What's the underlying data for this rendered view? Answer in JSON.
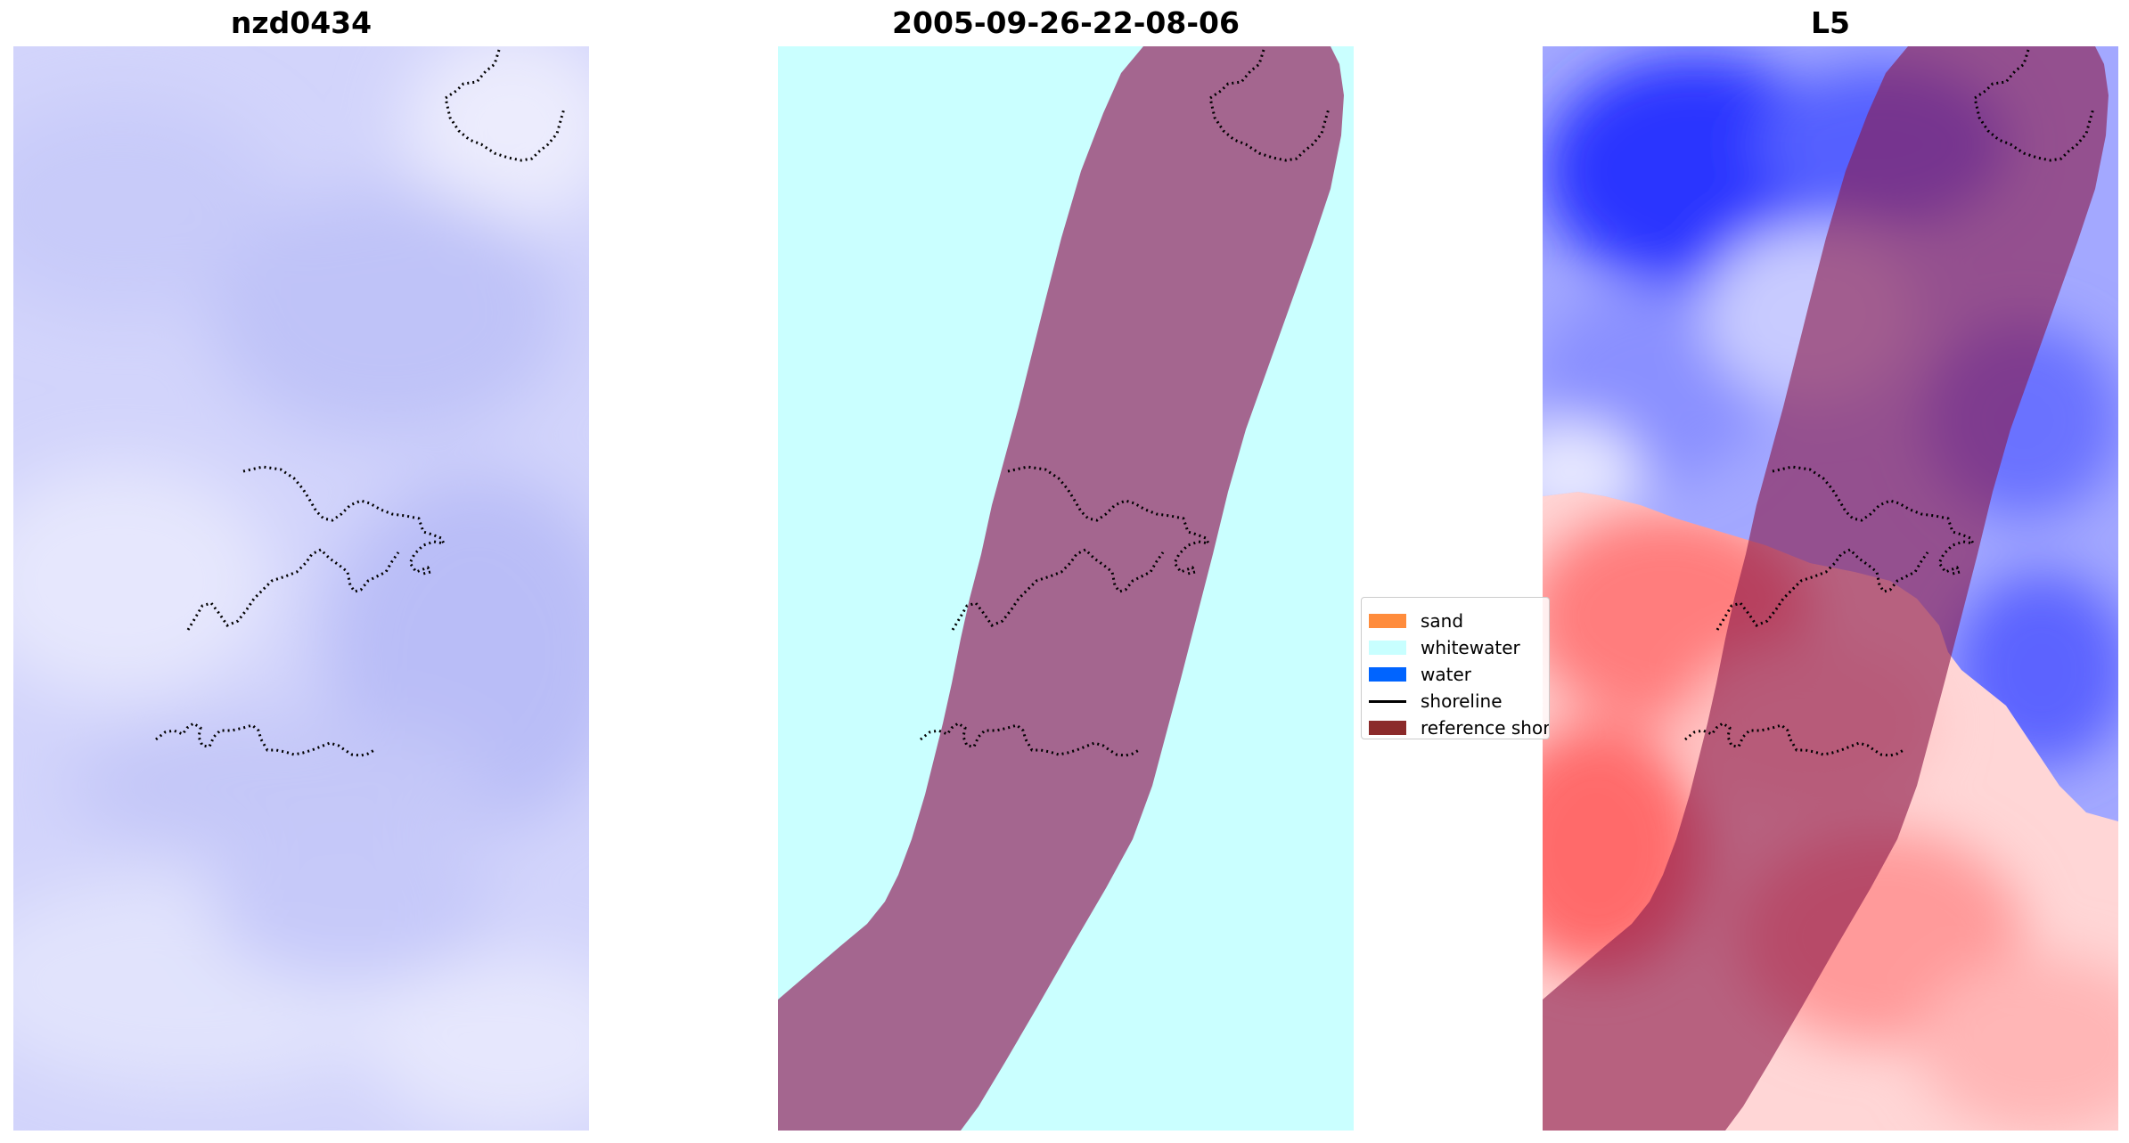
{
  "panels": [
    {
      "title": "nzd0434"
    },
    {
      "title": "2005-09-26-22-08-06"
    },
    {
      "title": "L5"
    }
  ],
  "legend": {
    "items": [
      {
        "label": "sand",
        "color": "#ff8c3c",
        "kind": "patch"
      },
      {
        "label": "whitewater",
        "color": "#c8ffff",
        "kind": "patch"
      },
      {
        "label": "water",
        "color": "#0064ff",
        "kind": "patch"
      },
      {
        "label": "shoreline",
        "color": "#000000",
        "kind": "line"
      },
      {
        "label": "reference shoreline",
        "color": "#8b2a2a",
        "kind": "patch"
      }
    ]
  },
  "colors": {
    "buffer_mask": "#a4668f",
    "whitewater_bg": "#caffff",
    "shoreline_dots": "#000000"
  }
}
